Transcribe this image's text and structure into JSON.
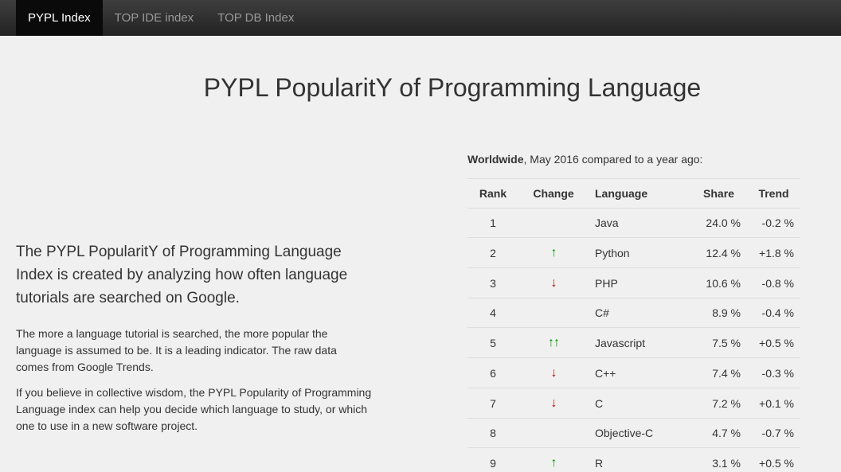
{
  "nav": {
    "tabs": [
      {
        "label": "PYPL Index",
        "active": true
      },
      {
        "label": "TOP IDE index",
        "active": false
      },
      {
        "label": "TOP DB Index",
        "active": false
      }
    ]
  },
  "main": {
    "title": "PYPL PopularitY of Programming Language",
    "intro_lead": "The PYPL PopularitY of Programming Language Index is created by analyzing how often language tutorials are searched on Google.",
    "intro_p2": "The more a language tutorial is searched, the more popular the language is assumed to be. It is a leading indicator. The raw data comes from Google Trends.",
    "intro_p3": "If you believe in collective wisdom, the PYPL Popularity of Programming Language index can help you decide which language to study, or which one to use in a new software project."
  },
  "table": {
    "caption_bold": "Worldwide",
    "caption_rest": ", May 2016 compared to a year ago:",
    "headers": [
      "Rank",
      "Change",
      "Language",
      "Share",
      "Trend"
    ],
    "rows": [
      {
        "rank": "1",
        "change": "",
        "language": "Java",
        "share": "24.0 %",
        "trend": "-0.2 %"
      },
      {
        "rank": "2",
        "change": "up",
        "language": "Python",
        "share": "12.4 %",
        "trend": "+1.8 %"
      },
      {
        "rank": "3",
        "change": "down",
        "language": "PHP",
        "share": "10.6 %",
        "trend": "-0.8 %"
      },
      {
        "rank": "4",
        "change": "",
        "language": "C#",
        "share": "8.9 %",
        "trend": "-0.4 %"
      },
      {
        "rank": "5",
        "change": "upup",
        "language": "Javascript",
        "share": "7.5 %",
        "trend": "+0.5 %"
      },
      {
        "rank": "6",
        "change": "down",
        "language": "C++",
        "share": "7.4 %",
        "trend": "-0.3 %"
      },
      {
        "rank": "7",
        "change": "down",
        "language": "C",
        "share": "7.2 %",
        "trend": "+0.1 %"
      },
      {
        "rank": "8",
        "change": "",
        "language": "Objective-C",
        "share": "4.7 %",
        "trend": "-0.7 %"
      },
      {
        "rank": "9",
        "change": "up",
        "language": "R",
        "share": "3.1 %",
        "trend": "+0.5 %"
      }
    ],
    "change_glyphs": {
      "up": "↑",
      "down": "↓",
      "upup": "↑↑"
    },
    "colors": {
      "up": "#009900",
      "down": "#cc0000"
    }
  }
}
